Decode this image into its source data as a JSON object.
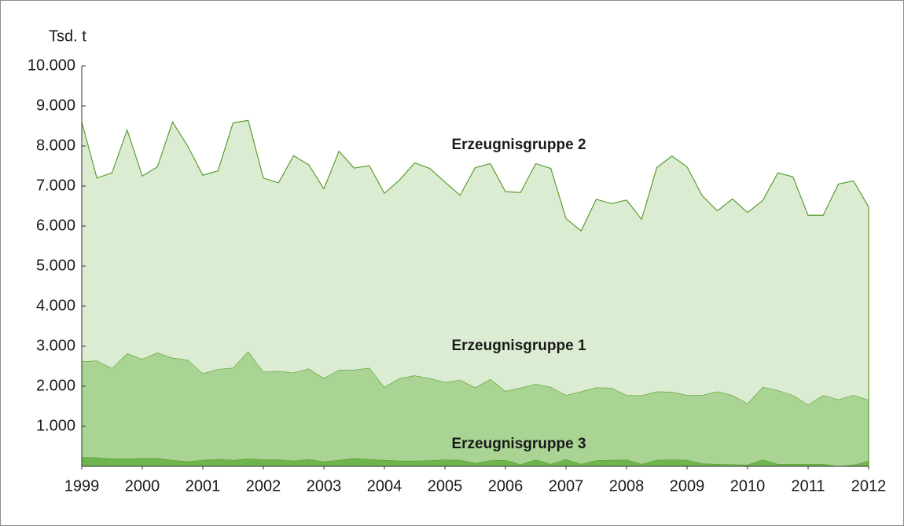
{
  "chart_data": {
    "type": "stacked_area",
    "y_label": "Tsd. t",
    "x": [
      1999,
      1999.25,
      1999.5,
      1999.75,
      2000,
      2000.25,
      2000.5,
      2000.75,
      2001,
      2001.25,
      2001.5,
      2001.75,
      2002,
      2002.25,
      2002.5,
      2002.75,
      2003,
      2003.25,
      2003.5,
      2003.75,
      2004,
      2004.25,
      2004.5,
      2004.75,
      2005,
      2005.25,
      2005.5,
      2005.75,
      2006,
      2006.25,
      2006.5,
      2006.75,
      2007,
      2007.25,
      2007.5,
      2007.75,
      2008,
      2008.25,
      2008.5,
      2008.75,
      2009,
      2009.25,
      2009.5,
      2009.75,
      2010,
      2010.25,
      2010.5,
      2010.75,
      2011,
      2011.25,
      2011.5,
      2011.75,
      2012
    ],
    "xlim": [
      1999,
      2012
    ],
    "xticks": [
      1999,
      2000,
      2001,
      2002,
      2003,
      2004,
      2005,
      2006,
      2007,
      2008,
      2009,
      2010,
      2011,
      2012
    ],
    "ylim": [
      0,
      10000
    ],
    "yticks": [
      {
        "value": 1000,
        "label": "1.000"
      },
      {
        "value": 2000,
        "label": "2.000"
      },
      {
        "value": 3000,
        "label": "3.000"
      },
      {
        "value": 4000,
        "label": "4.000"
      },
      {
        "value": 5000,
        "label": "5.000"
      },
      {
        "value": 6000,
        "label": "6.000"
      },
      {
        "value": 7000,
        "label": "7.000"
      },
      {
        "value": 8000,
        "label": "8.000"
      },
      {
        "value": 9000,
        "label": "9.000"
      },
      {
        "value": 10000,
        "label": "10.000"
      }
    ],
    "line_color": "#5a9e2e",
    "series": [
      {
        "name": "Erzeugnisgruppe 3",
        "color": "#6db54c",
        "values": [
          230,
          220,
          190,
          190,
          200,
          200,
          160,
          120,
          160,
          180,
          160,
          190,
          170,
          170,
          140,
          180,
          120,
          160,
          200,
          180,
          160,
          140,
          140,
          150,
          170,
          160,
          80,
          150,
          160,
          50,
          170,
          60,
          180,
          60,
          150,
          160,
          170,
          60,
          160,
          170,
          160,
          70,
          60,
          50,
          40,
          170,
          60,
          60,
          60,
          60,
          0,
          40,
          130
        ]
      },
      {
        "name": "Erzeugnisgruppe 1",
        "color": "#a9d493",
        "values": [
          2390,
          2420,
          2260,
          2630,
          2480,
          2640,
          2550,
          2540,
          2160,
          2250,
          2300,
          2680,
          2190,
          2210,
          2200,
          2260,
          2080,
          2250,
          2210,
          2280,
          1820,
          2060,
          2130,
          2050,
          1930,
          2000,
          1890,
          2030,
          1720,
          1910,
          1890,
          1920,
          1600,
          1810,
          1820,
          1800,
          1610,
          1710,
          1710,
          1690,
          1620,
          1710,
          1810,
          1730,
          1530,
          1810,
          1840,
          1720,
          1480,
          1720,
          1670,
          1740,
          1530
        ]
      },
      {
        "name": "Erzeugnisgruppe 2",
        "color": "#dcecd3",
        "values": [
          5980,
          4560,
          4880,
          5580,
          4570,
          4640,
          5890,
          5340,
          4950,
          4950,
          6120,
          5770,
          4840,
          4700,
          5420,
          5090,
          4730,
          5460,
          5040,
          5050,
          4840,
          4950,
          5310,
          5240,
          5000,
          4610,
          5490,
          5380,
          4980,
          4880,
          5500,
          5460,
          4410,
          4010,
          4700,
          4600,
          4870,
          4400,
          5590,
          5890,
          5700,
          4980,
          4510,
          4900,
          4770,
          4660,
          5430,
          5450,
          4730,
          4490,
          5380,
          5350,
          4820
        ]
      }
    ]
  }
}
